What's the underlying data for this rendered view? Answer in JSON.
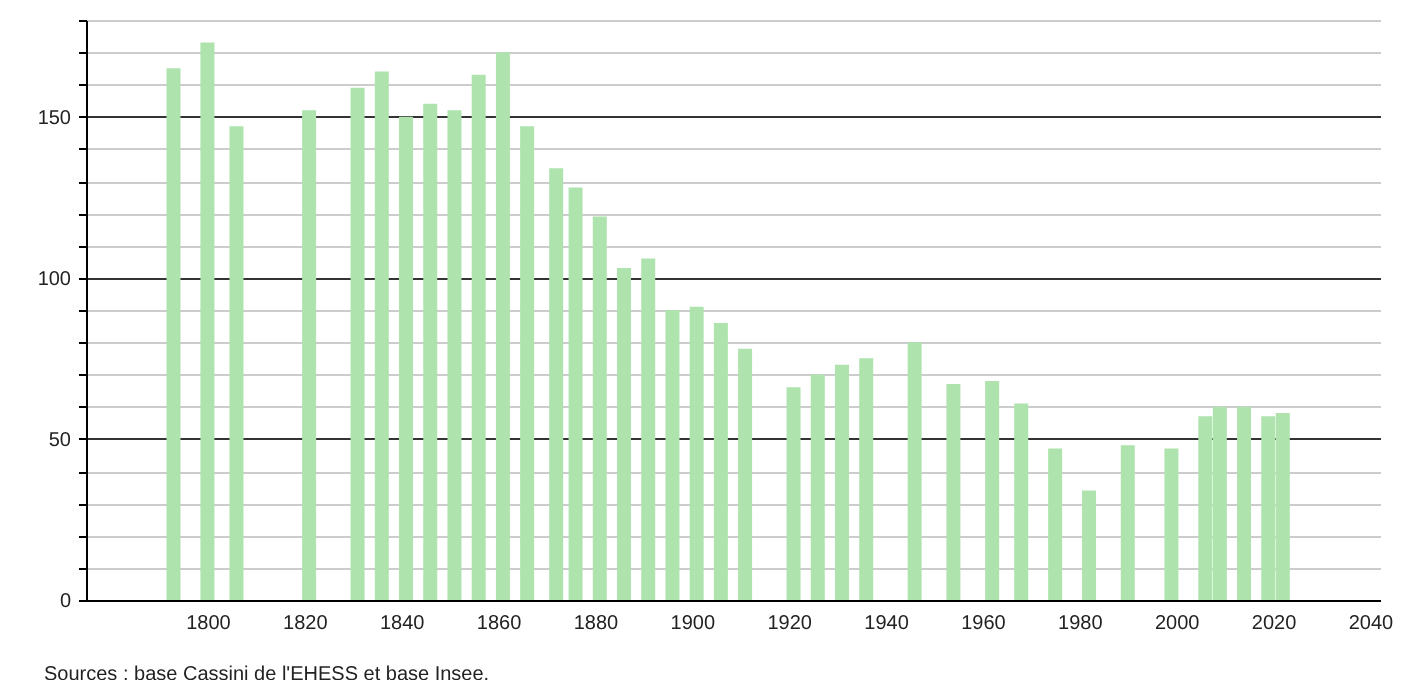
{
  "chart_data": {
    "type": "bar",
    "x": [
      1793,
      1800,
      1806,
      1821,
      1831,
      1836,
      1841,
      1846,
      1851,
      1856,
      1861,
      1866,
      1872,
      1876,
      1881,
      1886,
      1891,
      1896,
      1901,
      1906,
      1911,
      1921,
      1926,
      1931,
      1936,
      1946,
      1954,
      1962,
      1968,
      1975,
      1982,
      1990,
      1999,
      2006,
      2009,
      2014,
      2019,
      2022
    ],
    "values": [
      165,
      173,
      147,
      152,
      159,
      164,
      150,
      154,
      152,
      163,
      170,
      147,
      134,
      128,
      119,
      103,
      106,
      90,
      91,
      86,
      78,
      66,
      70,
      73,
      75,
      80,
      67,
      68,
      61,
      47,
      34,
      48,
      47,
      57,
      60,
      60,
      57,
      58
    ],
    "color": "#aee3ae",
    "xlim": [
      1777,
      2040
    ],
    "xticks": [
      1800,
      1820,
      1840,
      1860,
      1880,
      1900,
      1920,
      1940,
      1960,
      1980,
      2000,
      2020,
      2040
    ],
    "ylim": [
      0,
      180
    ],
    "yticks": [
      0,
      {
        "value": 10,
        "label": null
      },
      {
        "value": 20,
        "label": null
      },
      {
        "value": 30,
        "label": null
      },
      {
        "value": 40,
        "label": null
      },
      50,
      {
        "value": 60,
        "label": null
      },
      {
        "value": 70,
        "label": null
      },
      {
        "value": 80,
        "label": null
      },
      {
        "value": 90,
        "label": null
      },
      100,
      {
        "value": 110,
        "label": null
      },
      {
        "value": 120,
        "label": null
      },
      {
        "value": 130,
        "label": null
      },
      {
        "value": 140,
        "label": null
      },
      150,
      {
        "value": 160,
        "label": null
      },
      {
        "value": 170,
        "label": null
      },
      {
        "value": 180,
        "label": null
      }
    ],
    "grid": "y",
    "annotations": [
      "Sources : base Cassini de l'EHESS et base Insee."
    ]
  }
}
